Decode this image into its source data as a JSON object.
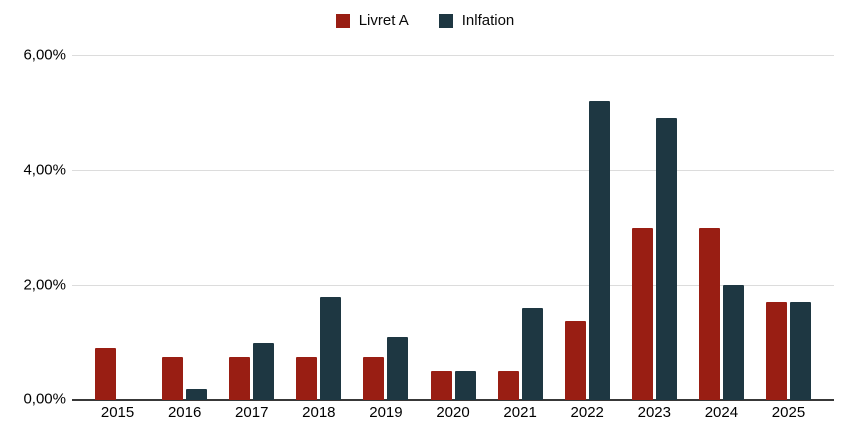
{
  "chart_data": {
    "type": "bar",
    "title": "",
    "xlabel": "",
    "ylabel": "",
    "categories": [
      "2015",
      "2016",
      "2017",
      "2018",
      "2019",
      "2020",
      "2021",
      "2022",
      "2023",
      "2024",
      "2025"
    ],
    "series": [
      {
        "name": "Livret A",
        "color": "#991e13",
        "values": [
          0.9,
          0.75,
          0.75,
          0.75,
          0.75,
          0.5,
          0.5,
          1.375,
          3.0,
          3.0,
          1.7
        ]
      },
      {
        "name": "Inlfation",
        "color": "#1e3742",
        "values": [
          0.0,
          0.2,
          1.0,
          1.8,
          1.1,
          0.5,
          1.6,
          5.2,
          4.9,
          2.0,
          1.7
        ]
      }
    ],
    "ylim": [
      0,
      6
    ],
    "y_ticks": [
      6,
      4,
      2,
      0
    ],
    "y_tick_labels": [
      "6,00%",
      "4,00%",
      "2,00%",
      "0,00%"
    ],
    "value_format": "percent-fr",
    "grid": "horizontal",
    "legend_position": "top-center",
    "colors": {
      "gridline": "#dcdcdc",
      "axis_line": "#383838",
      "text": "#000000",
      "background": "#ffffff"
    }
  }
}
